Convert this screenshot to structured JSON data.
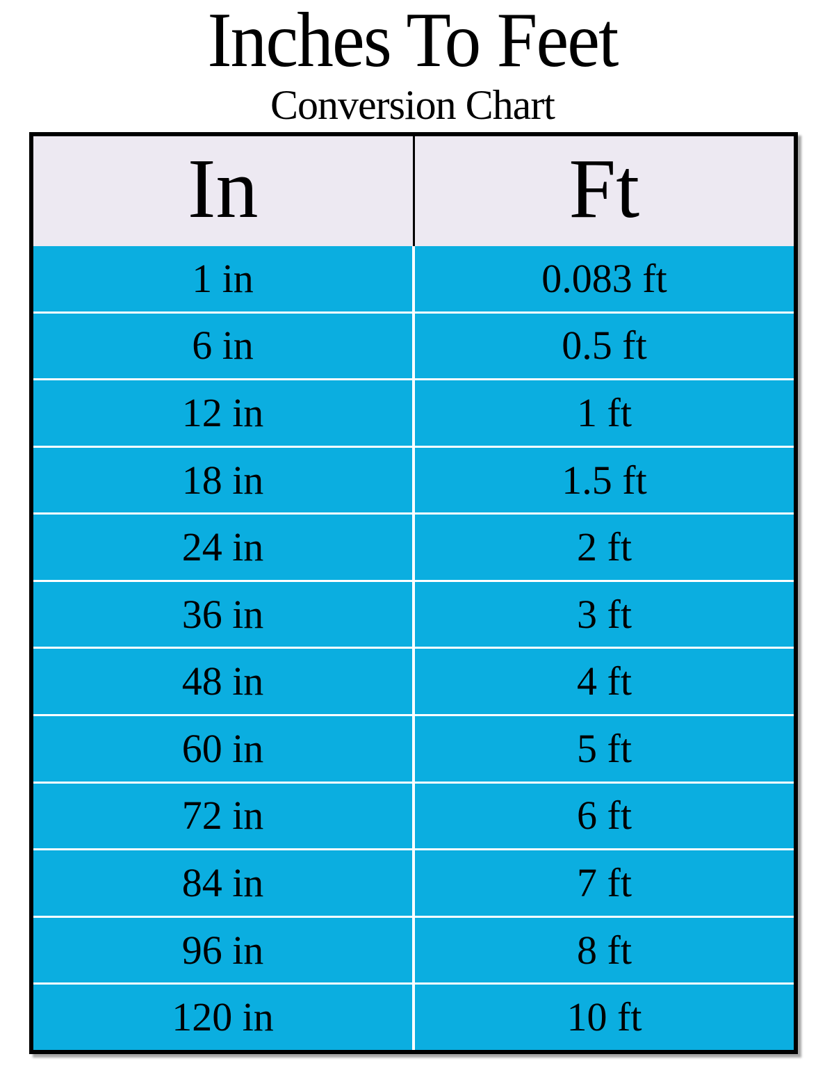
{
  "title": "Inches To Feet",
  "subtitle": "Conversion Chart",
  "colors": {
    "row_bg": "#0baee0",
    "header_bg": "#ede9f2",
    "grid_line": "#ffffff",
    "border": "#000000",
    "text": "#000000"
  },
  "table": {
    "headers": [
      "In",
      "Ft"
    ],
    "rows": [
      [
        "1 in",
        "0.083 ft"
      ],
      [
        "6 in",
        "0.5 ft"
      ],
      [
        "12 in",
        "1 ft"
      ],
      [
        "18 in",
        "1.5 ft"
      ],
      [
        "24 in",
        "2 ft"
      ],
      [
        "36 in",
        "3 ft"
      ],
      [
        "48 in",
        "4 ft"
      ],
      [
        "60 in",
        "5 ft"
      ],
      [
        "72 in",
        "6 ft"
      ],
      [
        "84 in",
        "7 ft"
      ],
      [
        "96 in",
        "8 ft"
      ],
      [
        "120 in",
        "10 ft"
      ]
    ]
  },
  "chart_data": {
    "type": "table",
    "title": "Inches To Feet",
    "subtitle": "Conversion Chart",
    "columns": [
      "In",
      "Ft"
    ],
    "inches_values": [
      1,
      6,
      12,
      18,
      24,
      36,
      48,
      60,
      72,
      84,
      96,
      120
    ],
    "feet_values": [
      0.083,
      0.5,
      1,
      1.5,
      2,
      3,
      4,
      5,
      6,
      7,
      8,
      10
    ]
  }
}
